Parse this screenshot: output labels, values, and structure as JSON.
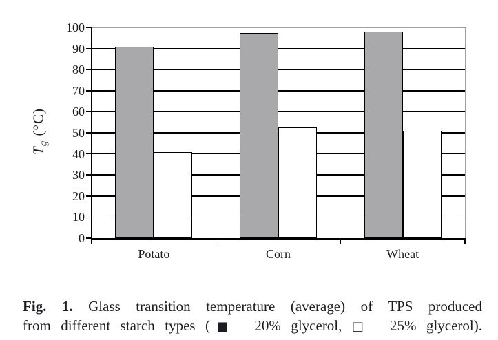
{
  "chart_data": {
    "type": "bar",
    "title": "",
    "categories": [
      "Potato",
      "Corn",
      "Wheat"
    ],
    "series": [
      {
        "name": "20% glycerol",
        "marker": "filled-square",
        "color": "#a9a9ab",
        "values": [
          91,
          97.5,
          98
        ]
      },
      {
        "name": "25% glycerol",
        "marker": "open-square",
        "color": "#ffffff",
        "values": [
          41,
          52.5,
          51
        ]
      }
    ],
    "ylabel": "Tg (°C)",
    "ylabel_italic": "T",
    "ylabel_sub": "g",
    "ylabel_rest": " (°C)",
    "xlabel": "",
    "ylim": [
      0,
      100
    ],
    "yticks": [
      0,
      10,
      20,
      30,
      40,
      50,
      60,
      70,
      80,
      90,
      100
    ],
    "grid": true,
    "legend_position": "in-caption",
    "bar_outline_color": "#000000",
    "plot_border_color": "#a0a0a0"
  },
  "caption": {
    "line1_bold": "Fig. 1.",
    "line1_rest": " Glass transition temperature (average) of TPS produced",
    "line2_pre": "from different starch types (",
    "filled_square": "■",
    "line2_mid": "  20% glycerol, ",
    "open_square": "□",
    "line2_post": "  25% glycerol)."
  }
}
